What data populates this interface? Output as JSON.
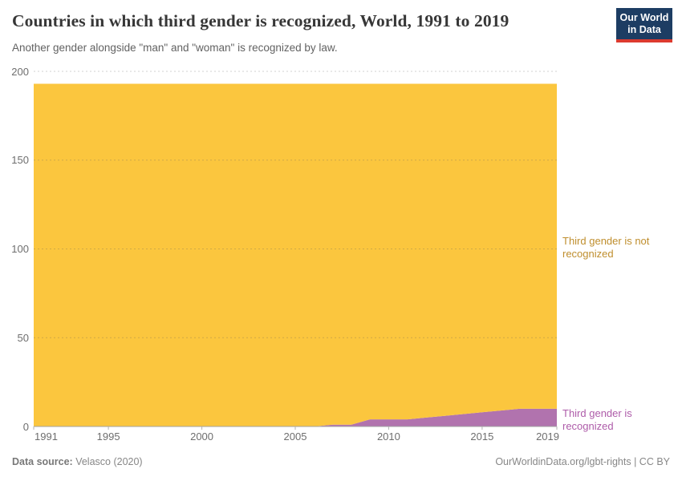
{
  "header": {
    "title": "Countries in which third gender is recognized, World, 1991 to 2019",
    "subtitle": "Another gender alongside \"man\" and \"woman\" is recognized by law.",
    "logo_line1": "Our World",
    "logo_line2": "in Data"
  },
  "chart_data": {
    "type": "area",
    "stacked": true,
    "title": "Countries in which third gender is recognized, World, 1991 to 2019",
    "xlabel": "",
    "ylabel": "",
    "x": [
      1991,
      1992,
      1993,
      1994,
      1995,
      1996,
      1997,
      1998,
      1999,
      2000,
      2001,
      2002,
      2003,
      2004,
      2005,
      2006,
      2007,
      2008,
      2009,
      2010,
      2011,
      2012,
      2013,
      2014,
      2015,
      2016,
      2017,
      2018,
      2019
    ],
    "series": [
      {
        "name": "third-gender-recognized",
        "label": "Third gender is recognized",
        "color": "#b173ae",
        "label_color": "#ae5ca9",
        "values": [
          0,
          0,
          0,
          0,
          0,
          0,
          0,
          0,
          0,
          0,
          0,
          0,
          0,
          0,
          0,
          0,
          1,
          1,
          4,
          4,
          4,
          5,
          6,
          7,
          8,
          9,
          10,
          10,
          10
        ]
      },
      {
        "name": "third-gender-not-recognized",
        "label": "Third gender is not recognized",
        "color": "#fbc63e",
        "label_color": "#bf8e2d",
        "values": [
          193,
          193,
          193,
          193,
          193,
          193,
          193,
          193,
          193,
          193,
          193,
          193,
          193,
          193,
          193,
          193,
          192,
          192,
          189,
          189,
          189,
          188,
          187,
          186,
          185,
          184,
          183,
          183,
          183
        ]
      }
    ],
    "total_countries": 193,
    "ylim": [
      0,
      200
    ],
    "yticks": [
      0,
      50,
      100,
      150,
      200
    ],
    "xticks": [
      1991,
      1995,
      2000,
      2005,
      2010,
      2015,
      2019
    ],
    "grid": "horizontal-dashed",
    "legend_position": "right-of-plot"
  },
  "footer": {
    "source_label": "Data source:",
    "source_value": " Velasco (2020)",
    "credit": "OurWorldinData.org/lgbt-rights | CC BY"
  }
}
